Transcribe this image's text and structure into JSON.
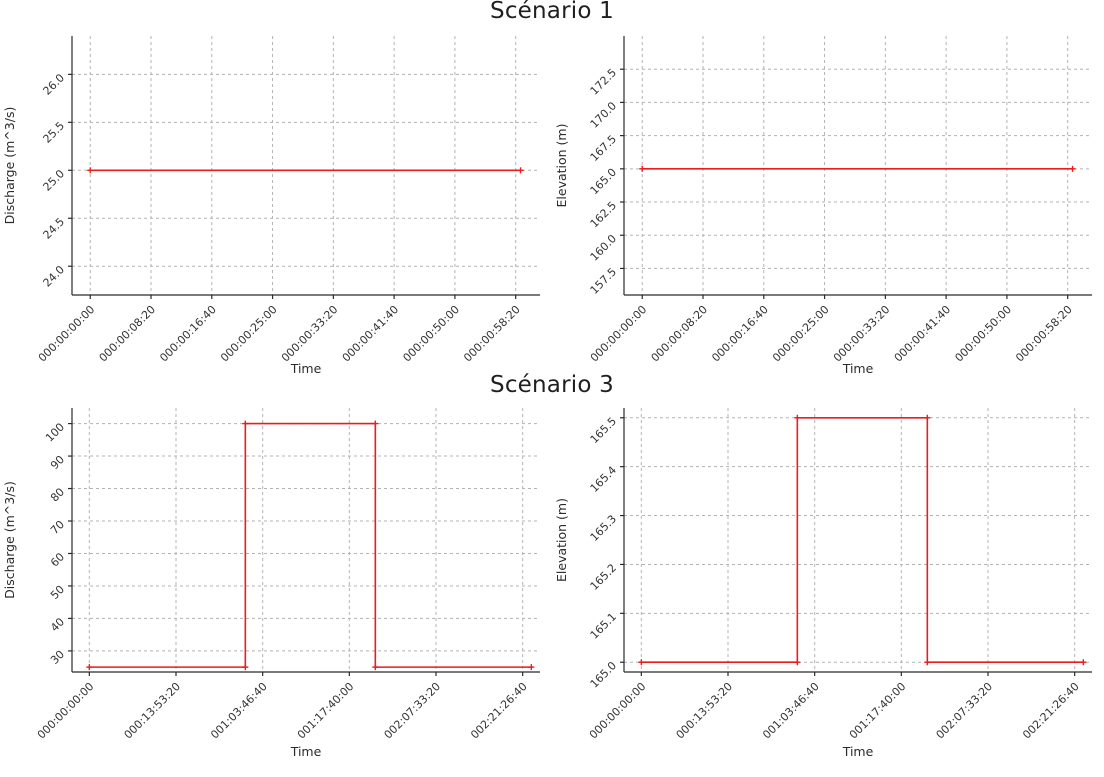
{
  "figure": {
    "background": "#ffffff",
    "row_titles": [
      {
        "label": "Scénario 1"
      },
      {
        "label": "Scénario 3"
      }
    ]
  },
  "style": {
    "grid_color": "#b3b3b3",
    "axis_color": "#2a2a2a",
    "tick_text_color": "#333333",
    "line_color": "#ee1b1b"
  },
  "chart_data": [
    {
      "id": "scenario1-discharge",
      "type": "line",
      "group_title": "Scénario 1",
      "xlabel": "Time",
      "ylabel": "Discharge (m^3/s)",
      "grid": true,
      "legend": "none",
      "xlim": [
        -150,
        3700
      ],
      "ylim": [
        23.7,
        26.4
      ],
      "x_ticks": [
        {
          "v": 0,
          "label": "000:00:00:00"
        },
        {
          "v": 500,
          "label": "000:00:08:20"
        },
        {
          "v": 1000,
          "label": "000:00:16:40"
        },
        {
          "v": 1500,
          "label": "000:00:25:00"
        },
        {
          "v": 2000,
          "label": "000:00:33:20"
        },
        {
          "v": 2500,
          "label": "000:00:41:40"
        },
        {
          "v": 3000,
          "label": "000:00:50:00"
        },
        {
          "v": 3500,
          "label": "000:00:58:20"
        }
      ],
      "y_ticks": [
        {
          "v": 24.0,
          "label": "24.0"
        },
        {
          "v": 24.5,
          "label": "24.5"
        },
        {
          "v": 25.0,
          "label": "25.0"
        },
        {
          "v": 25.5,
          "label": "25.5"
        },
        {
          "v": 26.0,
          "label": "26.0"
        }
      ],
      "points": [
        [
          0,
          25.0
        ],
        [
          3540,
          25.0
        ]
      ]
    },
    {
      "id": "scenario1-elevation",
      "type": "line",
      "group_title": "Scénario 1",
      "xlabel": "Time",
      "ylabel": "Elevation (m)",
      "grid": true,
      "legend": "none",
      "xlim": [
        -150,
        3700
      ],
      "ylim": [
        155.5,
        175.0
      ],
      "x_ticks": [
        {
          "v": 0,
          "label": "000:00:00:00"
        },
        {
          "v": 500,
          "label": "000:00:08:20"
        },
        {
          "v": 1000,
          "label": "000:00:16:40"
        },
        {
          "v": 1500,
          "label": "000:00:25:00"
        },
        {
          "v": 2000,
          "label": "000:00:33:20"
        },
        {
          "v": 2500,
          "label": "000:00:41:40"
        },
        {
          "v": 3000,
          "label": "000:00:50:00"
        },
        {
          "v": 3500,
          "label": "000:00:58:20"
        }
      ],
      "y_ticks": [
        {
          "v": 157.5,
          "label": "157.5"
        },
        {
          "v": 160.0,
          "label": "160.0"
        },
        {
          "v": 162.5,
          "label": "162.5"
        },
        {
          "v": 165.0,
          "label": "165.0"
        },
        {
          "v": 167.5,
          "label": "167.5"
        },
        {
          "v": 170.0,
          "label": "170.0"
        },
        {
          "v": 172.5,
          "label": "172.5"
        }
      ],
      "points": [
        [
          0,
          165.0
        ],
        [
          3540,
          165.0
        ]
      ]
    },
    {
      "id": "scenario3-discharge",
      "type": "line",
      "group_title": "Scénario 3",
      "xlabel": "Time",
      "ylabel": "Discharge (m^3/s)",
      "grid": true,
      "legend": "none",
      "xlim": [
        -10000,
        260000
      ],
      "ylim": [
        23.5,
        104.8
      ],
      "x_ticks": [
        {
          "v": 0,
          "label": "000:00:00:00"
        },
        {
          "v": 50000,
          "label": "000:13:53:20"
        },
        {
          "v": 100000,
          "label": "001:03:46:40"
        },
        {
          "v": 150000,
          "label": "001:17:40:00"
        },
        {
          "v": 200000,
          "label": "002:07:33:20"
        },
        {
          "v": 250000,
          "label": "002:21:26:40"
        }
      ],
      "y_ticks": [
        {
          "v": 30,
          "label": "30"
        },
        {
          "v": 40,
          "label": "40"
        },
        {
          "v": 50,
          "label": "50"
        },
        {
          "v": 60,
          "label": "60"
        },
        {
          "v": 70,
          "label": "70"
        },
        {
          "v": 80,
          "label": "80"
        },
        {
          "v": 90,
          "label": "90"
        },
        {
          "v": 100,
          "label": "100"
        }
      ],
      "points": [
        [
          0,
          25
        ],
        [
          90000,
          25
        ],
        [
          90000,
          100
        ],
        [
          165000,
          100
        ],
        [
          165000,
          25
        ],
        [
          255000,
          25
        ]
      ]
    },
    {
      "id": "scenario3-elevation",
      "type": "line",
      "group_title": "Scénario 3",
      "xlabel": "Time",
      "ylabel": "Elevation (m)",
      "grid": true,
      "legend": "none",
      "xlim": [
        -10000,
        260000
      ],
      "ylim": [
        164.98,
        165.52
      ],
      "x_ticks": [
        {
          "v": 0,
          "label": "000:00:00:00"
        },
        {
          "v": 50000,
          "label": "000:13:53:20"
        },
        {
          "v": 100000,
          "label": "001:03:46:40"
        },
        {
          "v": 150000,
          "label": "001:17:40:00"
        },
        {
          "v": 200000,
          "label": "002:07:33:20"
        },
        {
          "v": 250000,
          "label": "002:21:26:40"
        }
      ],
      "y_ticks": [
        {
          "v": 165.0,
          "label": "165.0"
        },
        {
          "v": 165.1,
          "label": "165.1"
        },
        {
          "v": 165.2,
          "label": "165.2"
        },
        {
          "v": 165.3,
          "label": "165.3"
        },
        {
          "v": 165.4,
          "label": "165.4"
        },
        {
          "v": 165.5,
          "label": "165.5"
        }
      ],
      "points": [
        [
          0,
          165.0
        ],
        [
          90000,
          165.0
        ],
        [
          90000,
          165.5
        ],
        [
          165000,
          165.5
        ],
        [
          165000,
          165.0
        ],
        [
          255000,
          165.0
        ]
      ]
    }
  ]
}
